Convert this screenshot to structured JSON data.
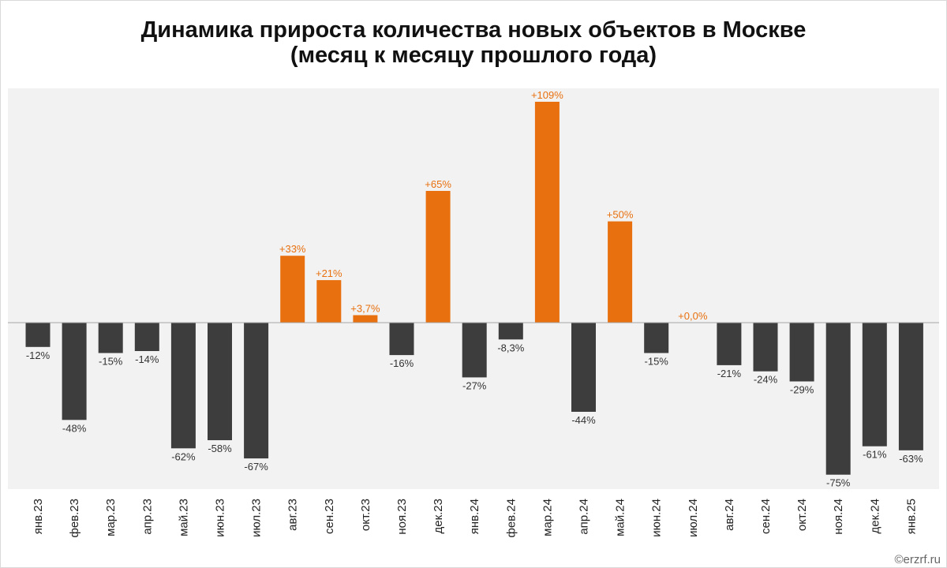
{
  "title_line1": "Динамика прироста количества новых объектов в Москве",
  "title_line2": "(месяц к месяцу прошлого года)",
  "credit": "©erzrf.ru",
  "colors": {
    "negative": "#3d3d3d",
    "positive": "#e8700f",
    "plot_background": "#f2f2f2",
    "zero_line": "#a6a6a6",
    "label_negative": "#333333",
    "label_positive": "#e8700f"
  },
  "chart_data": {
    "type": "bar",
    "title": "Динамика прироста количества новых объектов в Москве (месяц к месяцу прошлого года)",
    "categories": [
      "янв.23",
      "фев.23",
      "мар.23",
      "апр.23",
      "май.23",
      "июн.23",
      "июл.23",
      "авг.23",
      "сен.23",
      "окт.23",
      "ноя.23",
      "дек.23",
      "янв.24",
      "фев.24",
      "мар.24",
      "апр.24",
      "май.24",
      "июн.24",
      "июл.24",
      "авг.24",
      "сен.24",
      "окт.24",
      "ноя.24",
      "дек.24",
      "янв.25"
    ],
    "values": [
      -12,
      -48,
      -15,
      -14,
      -62,
      -58,
      -67,
      33,
      21,
      3.7,
      -16,
      65,
      -27,
      -8.3,
      109,
      -44,
      50,
      -15,
      0.0,
      -21,
      -24,
      -29,
      -75,
      -61,
      -63
    ],
    "labels": [
      "-12%",
      "-48%",
      "-15%",
      "-14%",
      "-62%",
      "-58%",
      "-67%",
      "+33%",
      "+21%",
      "+3,7%",
      "-16%",
      "+65%",
      "-27%",
      "-8,3%",
      "+109%",
      "-44%",
      "+50%",
      "-15%",
      "+0,0%",
      "-21%",
      "-24%",
      "-29%",
      "-75%",
      "-61%",
      "-63%"
    ],
    "unit": "%",
    "ylim": [
      -82,
      113
    ],
    "grid": false,
    "legend": "none"
  }
}
